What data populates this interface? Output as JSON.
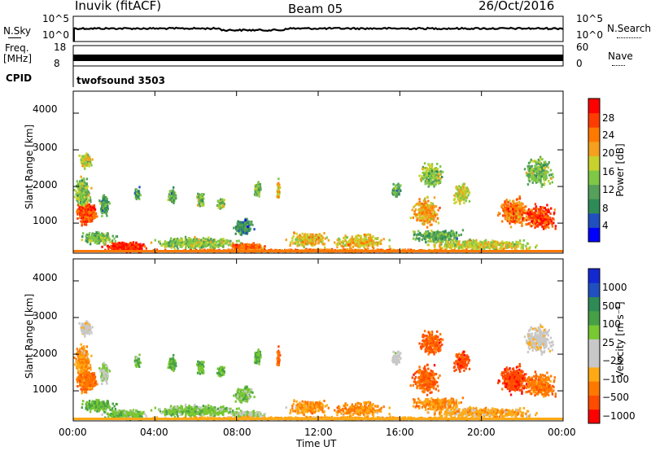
{
  "header": {
    "station": "Inuvik (fitACF)",
    "beam": "Beam 05",
    "date": "26/Oct/2016"
  },
  "top_panels": {
    "nsky_label": "N.Sky",
    "nsky_ticks": [
      "10^5",
      "10^0"
    ],
    "nsearch_label": "N.Search",
    "nsearch_ticks": [
      "10^5",
      "10^0"
    ],
    "freq_label": "Freq.",
    "freq_unit": "[MHz]",
    "freq_ticks": [
      "18",
      "8"
    ],
    "nave_label": "Nave",
    "nave_ticks": [
      "60",
      "0"
    ],
    "cpid_label": "CPID",
    "cpid_value": "twofsound 3503"
  },
  "colors": {
    "power_scale": [
      "#0000ff",
      "#2050c0",
      "#2e8b57",
      "#55a05a",
      "#7fc846",
      "#c8d22d",
      "#f5a01e",
      "#ff7800",
      "#ff3c00",
      "#ff0000"
    ],
    "velocity_scale": [
      "#ff0000",
      "#ff4b00",
      "#ff7800",
      "#ffaa14",
      "#c8c8c8",
      "#c8c8c8",
      "#78c832",
      "#46a046",
      "#2e8b57",
      "#2050c0",
      "#1428d2"
    ]
  },
  "chart_data": [
    {
      "type": "heatmap",
      "name": "power-panel",
      "ylabel": "Slant Range [km]",
      "ylim": [
        180,
        4600
      ],
      "yticks": [
        "1000",
        "2000",
        "3000",
        "4000"
      ],
      "xlim": [
        0,
        24
      ],
      "colorbar_label": "Power [dB]",
      "colorbar_ticks": [
        "4",
        "8",
        "12",
        "16",
        "20",
        "24",
        "28"
      ],
      "colorbar_range": [
        0,
        30
      ]
    },
    {
      "type": "heatmap",
      "name": "velocity-panel",
      "ylabel": "Slant Range [km]",
      "ylim": [
        180,
        4600
      ],
      "yticks": [
        "1000",
        "2000",
        "3000",
        "4000"
      ],
      "xlim": [
        0,
        24
      ],
      "xlabel": "Time UT",
      "xticks": [
        "00:00",
        "04:00",
        "08:00",
        "12:00",
        "16:00",
        "20:00",
        "00:00"
      ],
      "colorbar_label": "Velocity [m s⁻¹]",
      "colorbar_ticks": [
        "1000",
        "500",
        "100",
        "25",
        "−25",
        "−100",
        "−500",
        "−1000"
      ]
    }
  ]
}
